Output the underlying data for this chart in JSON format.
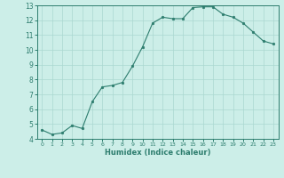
{
  "x": [
    0,
    1,
    2,
    3,
    4,
    5,
    6,
    7,
    8,
    9,
    10,
    11,
    12,
    13,
    14,
    15,
    16,
    17,
    18,
    19,
    20,
    21,
    22,
    23
  ],
  "y": [
    4.6,
    4.3,
    4.4,
    4.9,
    4.7,
    6.5,
    7.5,
    7.6,
    7.8,
    8.9,
    10.2,
    11.8,
    12.2,
    12.1,
    12.1,
    12.85,
    12.9,
    12.9,
    12.4,
    12.2,
    11.8,
    11.2,
    10.6,
    10.4
  ],
  "xlabel": "Humidex (Indice chaleur)",
  "ylim": [
    4,
    13
  ],
  "xlim": [
    -0.5,
    23.5
  ],
  "yticks": [
    4,
    5,
    6,
    7,
    8,
    9,
    10,
    11,
    12,
    13
  ],
  "xticks": [
    0,
    1,
    2,
    3,
    4,
    5,
    6,
    7,
    8,
    9,
    10,
    11,
    12,
    13,
    14,
    15,
    16,
    17,
    18,
    19,
    20,
    21,
    22,
    23
  ],
  "line_color": "#2d7d6e",
  "marker_color": "#2d7d6e",
  "bg_color": "#cceee8",
  "grid_color": "#aad8d0"
}
